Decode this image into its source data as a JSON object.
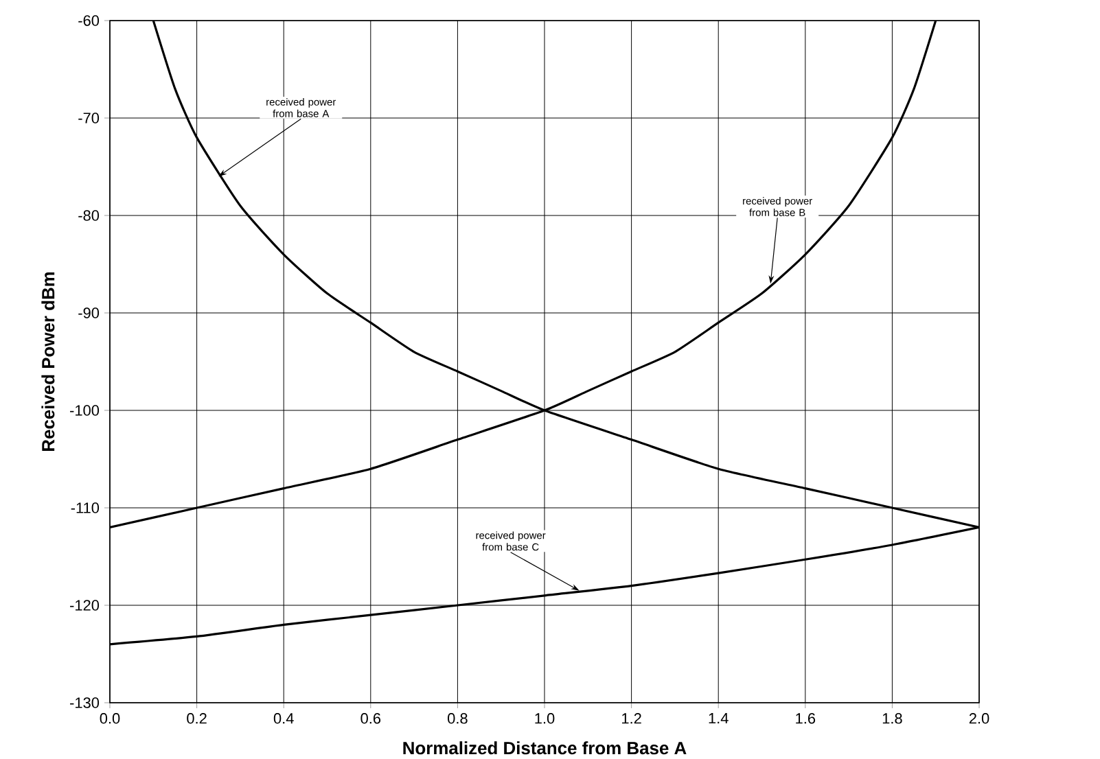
{
  "chart_data": {
    "type": "line",
    "xlabel": "Normalized Distance from Base A",
    "ylabel": "Received Power  dBm",
    "xlim": [
      0,
      2
    ],
    "ylim": [
      -130,
      -60
    ],
    "xticks": [
      {
        "value": 0,
        "label": "0.0"
      },
      {
        "value": 0.2,
        "label": "0.2"
      },
      {
        "value": 0.4,
        "label": "0.4"
      },
      {
        "value": 0.6,
        "label": "0.6"
      },
      {
        "value": 0.8,
        "label": "0.8"
      },
      {
        "value": 1,
        "label": "1.0"
      },
      {
        "value": 1.2,
        "label": "1.2"
      },
      {
        "value": 1.4,
        "label": "1.4"
      },
      {
        "value": 1.6,
        "label": "1.6"
      },
      {
        "value": 1.8,
        "label": "1.8"
      },
      {
        "value": 2,
        "label": "2.0"
      }
    ],
    "yticks": [
      -130,
      -120,
      -110,
      -100,
      -90,
      -80,
      -70,
      -60
    ],
    "grid": true,
    "marker": "none",
    "line_style": "solid",
    "series": [
      {
        "color": "#000000",
        "x": [
          0.1,
          0.15,
          0.2,
          0.3,
          0.4,
          0.5,
          0.6,
          0.7,
          0.8,
          0.9,
          1.0,
          1.2,
          1.4,
          1.6,
          1.8,
          2.0
        ],
        "values": [
          -60,
          -67,
          -72,
          -79,
          -84,
          -88,
          -91,
          -94,
          -96,
          -98,
          -100,
          -103,
          -106,
          -108,
          -110,
          -112
        ]
      },
      {
        "color": "#000000",
        "x": [
          0.0,
          0.2,
          0.4,
          0.6,
          0.8,
          1.0,
          1.1,
          1.2,
          1.3,
          1.4,
          1.5,
          1.6,
          1.7,
          1.8,
          1.85,
          1.9
        ],
        "values": [
          -112,
          -110,
          -108,
          -106,
          -103,
          -100,
          -98,
          -96,
          -94,
          -91,
          -88,
          -84,
          -79,
          -72,
          -67,
          -60
        ]
      },
      {
        "color": "#000000",
        "x": [
          0.0,
          0.2,
          0.4,
          0.6,
          0.8,
          1.0,
          1.2,
          1.4,
          1.6,
          1.8,
          2.0
        ],
        "values": [
          -124,
          -123.2,
          -122,
          -121,
          -120,
          -119,
          -118,
          -116.7,
          -115.3,
          -113.8,
          -112
        ]
      }
    ],
    "annotations": [
      {
        "text": "received power from base A",
        "x": 0.25,
        "y": -76
      },
      {
        "text": "received power from base B",
        "x": 1.52,
        "y": -87
      },
      {
        "text": "received power from base C",
        "x": 1.08,
        "y": -118.5
      }
    ]
  }
}
